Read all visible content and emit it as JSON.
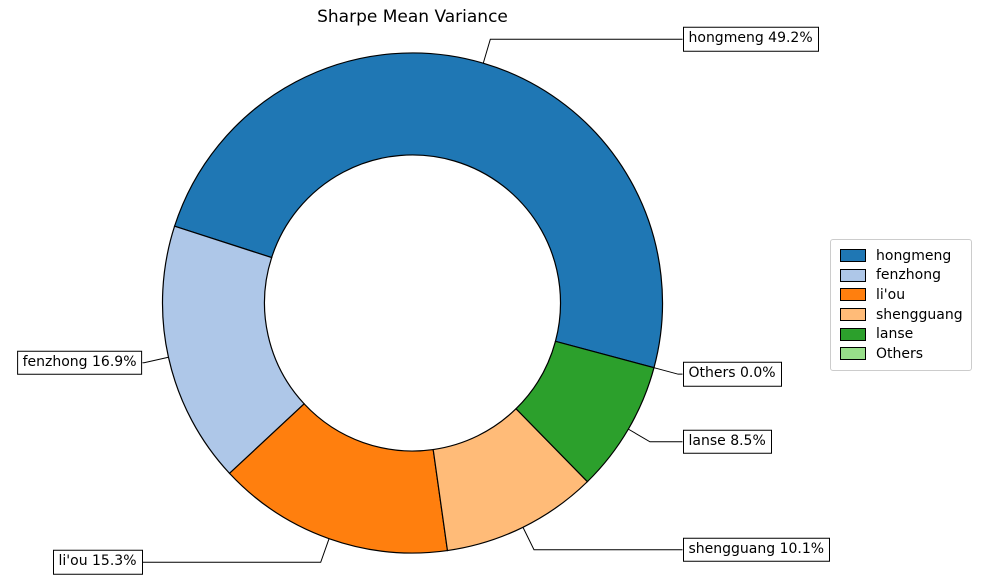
{
  "title": "Sharpe Mean Variance",
  "chart_data": {
    "type": "pie",
    "subtype": "donut",
    "title": "Sharpe Mean Variance",
    "unit": "%",
    "slices": [
      {
        "label": "hongmeng",
        "value": 49.2,
        "color": "#1f77b4"
      },
      {
        "label": "fenzhong",
        "value": 16.9,
        "color": "#aec7e8"
      },
      {
        "label": "li'ou",
        "value": 15.3,
        "color": "#ff7f0e"
      },
      {
        "label": "shengguang",
        "value": 10.1,
        "color": "#ffbb78"
      },
      {
        "label": "lanse",
        "value": 8.5,
        "color": "#2ca02c"
      },
      {
        "label": "Others",
        "value": 0.0,
        "color": "#98df8a"
      }
    ],
    "annotations": [
      "hongmeng 49.2%",
      "fenzhong 16.9%",
      "li'ou 15.3%",
      "shengguang 10.1%",
      "lanse 8.5%",
      "Others 0.0%"
    ],
    "legend_labels": [
      "hongmeng",
      "fenzhong",
      "li'ou",
      "shengguang",
      "lanse",
      "Others"
    ],
    "layout": {
      "start_angle_deg": -15,
      "direction": "counterclockwise",
      "donut_hole_ratio": 0.592,
      "edge_color": "#000000",
      "leader_color": "#000000",
      "legend_position": "center right",
      "background": "#ffffff"
    }
  }
}
